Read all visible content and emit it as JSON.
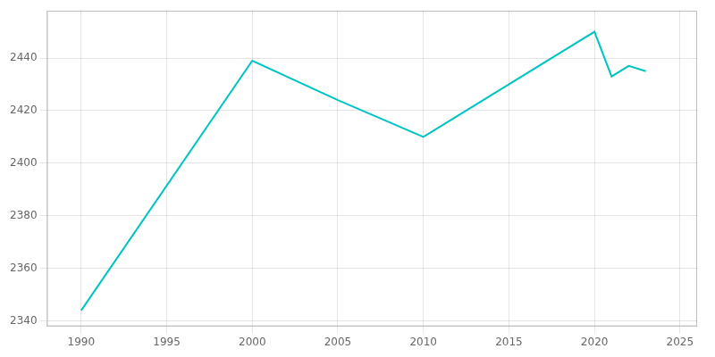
{
  "chart_data": {
    "type": "line",
    "x": [
      1990,
      2000,
      2005,
      2010,
      2020,
      2021,
      2022,
      2023
    ],
    "values": [
      2344,
      2439,
      2424,
      2410,
      2450,
      2433,
      2437,
      2435
    ],
    "color": "#00C4C4",
    "xlim": [
      1988,
      2026
    ],
    "ylim": [
      2338,
      2458
    ],
    "xticks": [
      1990,
      1995,
      2000,
      2005,
      2010,
      2015,
      2020,
      2025
    ],
    "yticks": [
      2340,
      2360,
      2380,
      2400,
      2420,
      2440
    ],
    "grid": true
  }
}
